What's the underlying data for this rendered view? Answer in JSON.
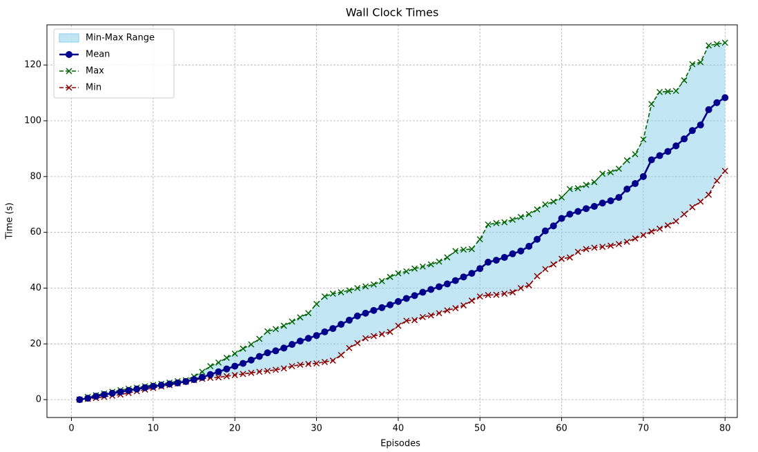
{
  "chart_data": {
    "type": "line",
    "title": "Wall Clock Times",
    "x_label": "Episodes",
    "y_label": "Time (s)",
    "x": [
      1,
      2,
      3,
      4,
      5,
      6,
      7,
      8,
      9,
      10,
      11,
      12,
      13,
      14,
      15,
      16,
      17,
      18,
      19,
      20,
      21,
      22,
      23,
      24,
      25,
      26,
      27,
      28,
      29,
      30,
      31,
      32,
      33,
      34,
      35,
      36,
      37,
      38,
      39,
      40,
      41,
      42,
      43,
      44,
      45,
      46,
      47,
      48,
      49,
      50,
      51,
      52,
      53,
      54,
      55,
      56,
      57,
      58,
      59,
      60,
      61,
      62,
      63,
      64,
      65,
      66,
      67,
      68,
      69,
      70,
      71,
      72,
      73,
      74,
      75,
      76,
      77,
      78,
      79,
      80
    ],
    "fill": {
      "name": "Min-Max Range",
      "color": "#87ceeb"
    },
    "series": [
      {
        "name": "Mean",
        "color": "#00008b",
        "dashed": false,
        "marker": "o",
        "values": [
          0,
          0.5,
          1.2,
          1.8,
          2.3,
          2.8,
          3.3,
          3.8,
          4.3,
          4.8,
          5.2,
          5.6,
          6,
          6.5,
          7.2,
          8,
          9,
          10,
          11,
          12,
          13,
          14.2,
          15.5,
          16.8,
          17.5,
          18.5,
          19.8,
          21,
          22,
          23,
          24.3,
          25.5,
          27,
          28.5,
          30,
          31,
          32,
          33,
          34,
          35.2,
          36.3,
          37.3,
          38.5,
          39.5,
          40.5,
          41.5,
          42.7,
          44,
          45.3,
          47,
          49.3,
          50,
          51,
          52.3,
          53.3,
          55,
          57.5,
          60.5,
          62.3,
          65,
          66.5,
          67.5,
          68.5,
          69.3,
          70.5,
          71.3,
          72.5,
          75.5,
          77.5,
          80,
          86,
          87.5,
          89,
          91,
          93.5,
          96.5,
          98.5,
          104,
          106.5,
          108.3
        ]
      },
      {
        "name": "Max",
        "color": "#006400",
        "dashed": true,
        "marker": "x",
        "values": [
          0,
          1,
          1.6,
          2.2,
          2.8,
          3.4,
          3.9,
          4.3,
          4.8,
          5.3,
          5.7,
          6.1,
          6.6,
          7,
          8.3,
          10,
          12,
          13.3,
          15,
          16.5,
          18.3,
          19.8,
          21.8,
          24.5,
          25.3,
          26.5,
          28,
          29.5,
          31,
          34.3,
          37,
          38,
          38.5,
          39.2,
          40,
          40.6,
          41.3,
          42.5,
          44,
          45.3,
          46,
          47,
          47.7,
          48.5,
          49.5,
          51,
          53.3,
          53.8,
          54,
          57.5,
          62.8,
          63.3,
          63.6,
          64.5,
          65.5,
          66.5,
          68.2,
          70,
          71,
          72.5,
          75.5,
          75.8,
          77,
          78,
          81,
          81.5,
          82.8,
          85.8,
          88,
          93.3,
          106,
          110.3,
          110.5,
          110.7,
          114.5,
          120.3,
          121,
          127,
          127.5,
          128
        ]
      },
      {
        "name": "Min",
        "color": "#8b0000",
        "dashed": true,
        "marker": "x",
        "values": [
          0,
          0.3,
          0.6,
          1,
          1.4,
          1.8,
          2.4,
          3,
          3.6,
          4.2,
          4.7,
          5.2,
          5.8,
          6.4,
          7,
          7.5,
          7.8,
          8,
          8.4,
          8.8,
          9.2,
          9.6,
          10,
          10.3,
          10.7,
          11.2,
          12,
          12.5,
          12.8,
          13,
          13.5,
          14,
          16,
          18.5,
          20.3,
          22,
          22.8,
          23.5,
          24.3,
          26.5,
          28.3,
          28.5,
          29.6,
          30.2,
          31,
          32,
          32.8,
          33.8,
          35.5,
          37,
          37.5,
          37.6,
          38,
          38.5,
          40,
          41,
          44.3,
          46.8,
          48.5,
          50.5,
          51,
          53,
          54,
          54.5,
          54.8,
          55.2,
          55.8,
          56.6,
          57.8,
          59,
          60.3,
          61.3,
          62.5,
          64,
          66.5,
          69,
          71,
          73.5,
          78.5,
          82
        ]
      }
    ],
    "xlim": [
      -3,
      81.5
    ],
    "ylim": [
      -6.4,
      134.4
    ],
    "xticks": [
      0,
      10,
      20,
      30,
      40,
      50,
      60,
      70,
      80
    ],
    "yticks": [
      0,
      20,
      40,
      60,
      80,
      100,
      120
    ],
    "grid": true,
    "legend": "upper left"
  }
}
